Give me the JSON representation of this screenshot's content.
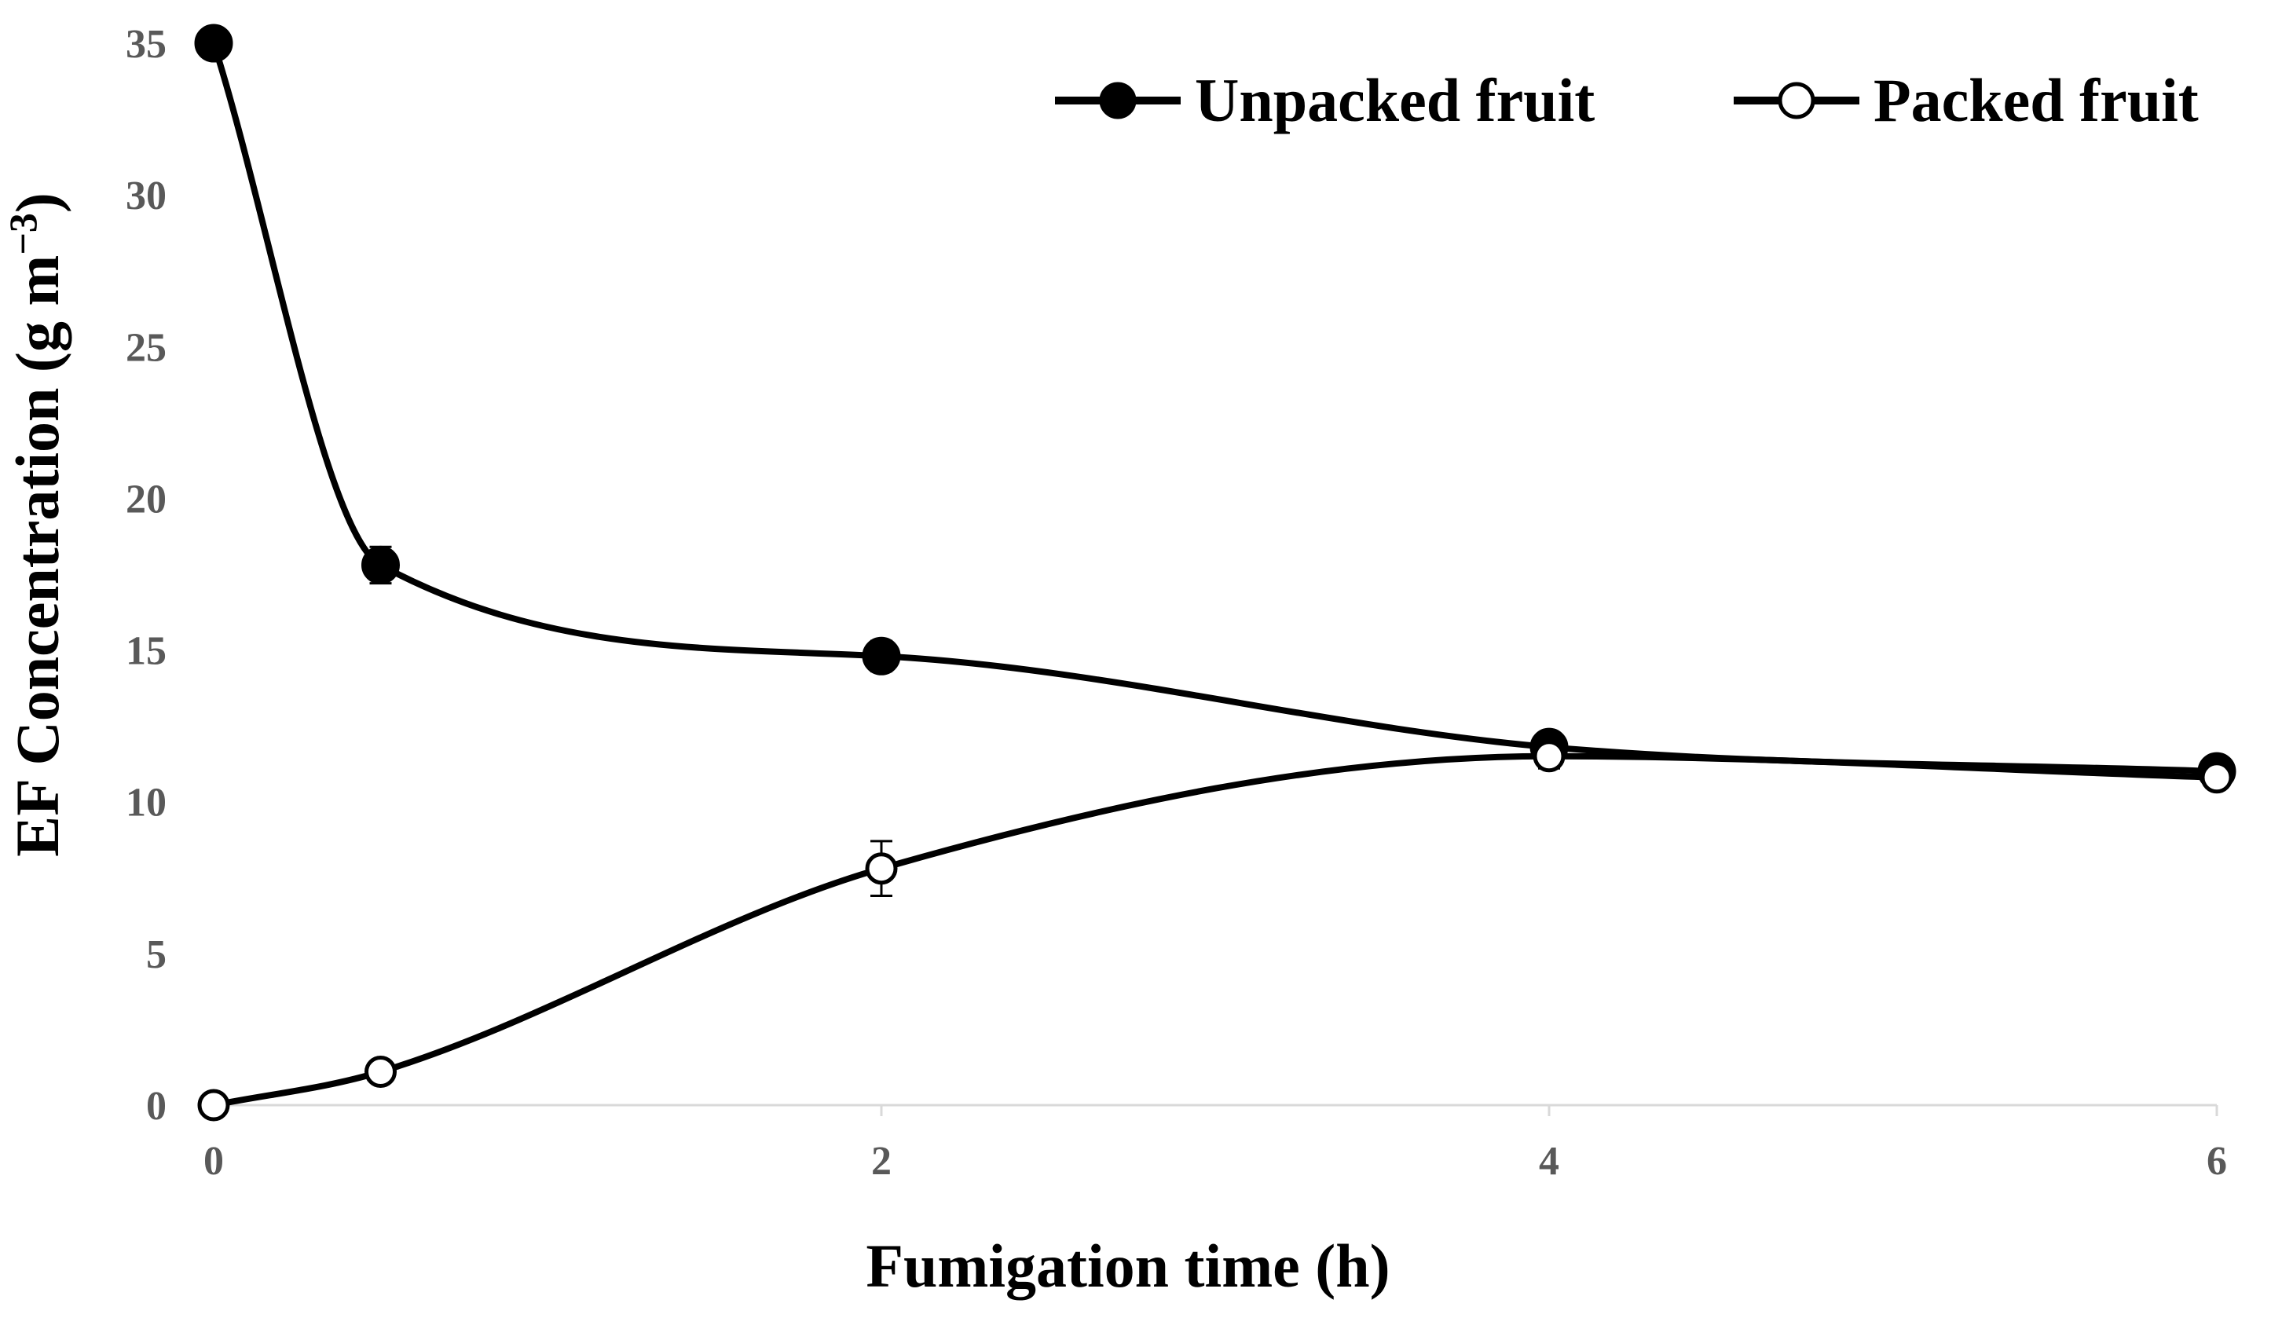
{
  "chart_data": {
    "type": "line",
    "xlabel": "Fumigation time (h)",
    "ylabel": "EF Concentration (g m",
    "ylabel_sup": "−3",
    "ylabel_close": ")",
    "xlim": [
      0,
      6
    ],
    "ylim": [
      0,
      35
    ],
    "x_ticks": [
      0,
      2,
      4,
      6
    ],
    "y_ticks": [
      0,
      5,
      10,
      15,
      20,
      25,
      30,
      35
    ],
    "grid": false,
    "legend_position": "top-right",
    "series": [
      {
        "name": "Unpacked fruit",
        "marker": "filled-circle",
        "color": "#000000",
        "x": [
          0,
          0.5,
          2,
          4,
          6
        ],
        "y": [
          35.0,
          17.8,
          14.8,
          11.8,
          11.0
        ],
        "error": [
          0.0,
          0.6,
          0.5,
          0.3,
          0.2
        ]
      },
      {
        "name": "Packed fruit",
        "marker": "open-circle",
        "color": "#000000",
        "x": [
          0,
          0.5,
          2,
          4,
          6
        ],
        "y": [
          0.0,
          1.1,
          7.8,
          11.5,
          10.8
        ],
        "error": [
          0.0,
          0.1,
          0.9,
          0.4,
          0.2
        ]
      }
    ]
  }
}
